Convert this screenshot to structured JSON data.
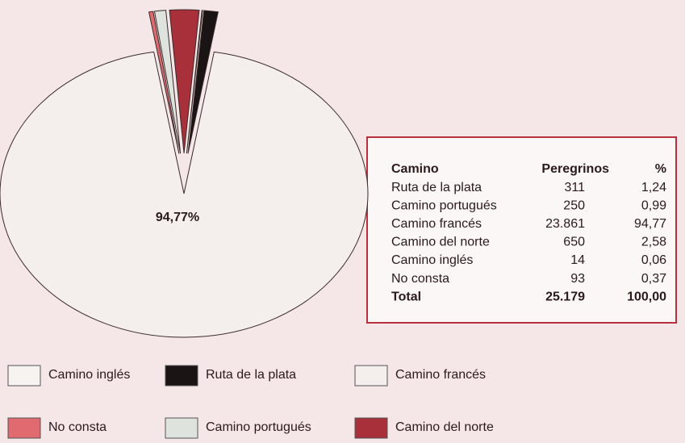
{
  "chart_data": {
    "type": "pie",
    "categories": [
      "Camino inglés",
      "Ruta de la plata",
      "Camino francés",
      "No consta",
      "Camino portugués",
      "Camino del norte"
    ],
    "values": [
      0.06,
      1.24,
      94.77,
      0.37,
      0.99,
      2.58
    ],
    "value_labels": [
      null,
      null,
      "94,77%",
      null,
      null,
      null
    ],
    "colors": [
      "#f7f3f1",
      "#1a1414",
      "#f4eeec",
      "#e06a70",
      "#dfe3de",
      "#a8303a"
    ]
  },
  "table": {
    "header": [
      "Camino",
      "Peregrinos",
      "%"
    ],
    "rows": [
      [
        "Ruta de la plata",
        "311",
        "1,24"
      ],
      [
        "Camino portugués",
        "250",
        "0,99"
      ],
      [
        "Camino francés",
        "23.861",
        "94,77"
      ],
      [
        "Camino del norte",
        "650",
        "2,58"
      ],
      [
        "Camino inglés",
        "14",
        "0,06"
      ],
      [
        "No consta",
        "93",
        "0,37"
      ]
    ],
    "total": [
      "Total",
      "25.179",
      "100,00"
    ]
  }
}
